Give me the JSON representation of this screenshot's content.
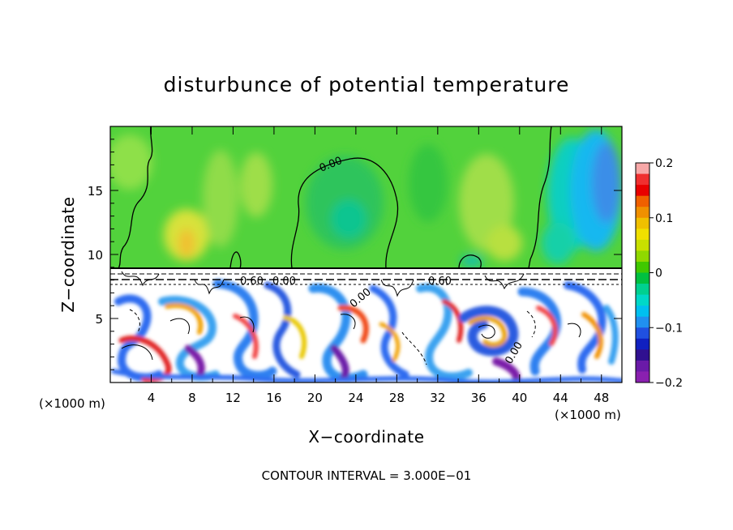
{
  "chart_data": {
    "type": "heatmap",
    "title": "disturbunce of potential temperature",
    "xlabel": "X−coordinate",
    "ylabel": "Z−coordinate",
    "x_unit": "(×1000 m)",
    "x_unit_right": "(×1000 m)",
    "xlim": [
      0,
      50
    ],
    "ylim": [
      0,
      20
    ],
    "x_ticks": [
      4,
      8,
      12,
      16,
      20,
      24,
      28,
      32,
      36,
      40,
      44,
      48
    ],
    "x_tick_labels": [
      "4",
      "8",
      "12",
      "16",
      "20",
      "24",
      "28",
      "32",
      "36",
      "40",
      "44",
      "48"
    ],
    "y_ticks": [
      5,
      10,
      15
    ],
    "y_tick_labels": [
      "5",
      "10",
      "15"
    ],
    "colorbar": {
      "range": [
        -0.2,
        0.2
      ],
      "ticks": [
        0.2,
        0.1,
        0,
        -0.1,
        -0.2
      ],
      "tick_labels": [
        "0.2",
        "0.1",
        "0",
        "−0.1",
        "−0.2"
      ],
      "colors": [
        "#f8a8a8",
        "#f03030",
        "#e80000",
        "#f06000",
        "#f09000",
        "#f0c000",
        "#f0e000",
        "#c8e000",
        "#90d800",
        "#40c800",
        "#00c040",
        "#00d090",
        "#00d8c8",
        "#00c0f0",
        "#2090f0",
        "#2050e0",
        "#1020c0",
        "#301090",
        "#6a1aa8",
        "#8a20b0"
      ]
    },
    "contour_labels": [
      "0.00",
      "0.60",
      "0.00",
      "0.60",
      "0.00",
      "0.00"
    ],
    "interface_height": 9,
    "colors": {
      "upper_background": "#52d23c",
      "interface_line": "#000000"
    }
  },
  "footer": {
    "contour_interval": "CONTOUR INTERVAL = 3.000E−01"
  }
}
